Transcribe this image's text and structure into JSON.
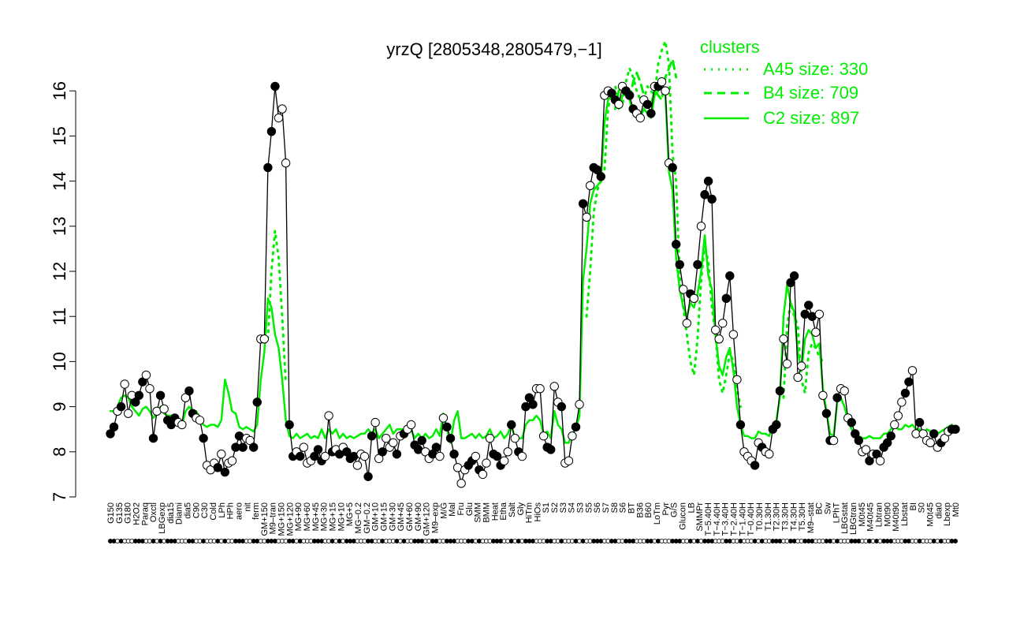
{
  "colors": {
    "accent": "#00ee00",
    "line": "#000000",
    "background": "#ffffff"
  },
  "chart_data": {
    "type": "line",
    "title": "yrzQ [2805348,2805479,−1]",
    "ylim": [
      7,
      16.5
    ],
    "yticks": [
      7,
      8,
      9,
      10,
      11,
      12,
      13,
      14,
      15,
      16
    ],
    "legend": {
      "title": "clusters",
      "position": "top-right",
      "entries": [
        {
          "label": "A45 size: 330",
          "style": "dotted"
        },
        {
          "label": "B4 size: 709",
          "style": "dashed"
        },
        {
          "label": "C2 size: 897",
          "style": "solid"
        }
      ]
    },
    "x_tick_labels": [
      "G150",
      "G135",
      "G180",
      "H2O2",
      "Paraq",
      "Oxctl",
      "LBGexp",
      "dia15",
      "Diami",
      "dia5",
      "C90",
      "C30",
      "Cold",
      "LPh",
      "HPh",
      "aero",
      "nit",
      "ferm",
      "GM+150",
      "M9–tran",
      "MG+150",
      "MG+120",
      "MG+90",
      "MG+60",
      "MG+45",
      "MG+30",
      "MG+15",
      "MG+10",
      "MG+5",
      "MG−0.2",
      "GM−0.2",
      "GM+10",
      "GM+15",
      "GM+30",
      "GM+45",
      "GM+60",
      "GM+90",
      "GM+120",
      "M9–exp",
      "M/G",
      "Mal",
      "Fru",
      "Glu",
      "SMM",
      "BMM",
      "Heat",
      "Etha",
      "Salt",
      "Gly",
      "HiTm",
      "HiOs",
      "S1",
      "S2",
      "S3",
      "S4",
      "S3",
      "S5",
      "S6",
      "S7",
      "S8",
      "S6",
      "BT",
      "B36",
      "B60",
      "LoTm",
      "Pyr",
      "G/S",
      "Glucon",
      "LB",
      "SMMPr",
      "T−5.40H",
      "T−4.40H",
      "T−3.40H",
      "T−2.40H",
      "T−1.40H",
      "T−0.40H",
      "T0.30H",
      "T1.30H",
      "T2.30H",
      "T3.30H",
      "T4.30H",
      "T5.30H",
      "M9–stat",
      "BC",
      "Sw",
      "LPhT",
      "LBGstat",
      "LBGtran",
      "M0t45",
      "M40t45",
      "Lbtran",
      "M0t90",
      "M40t90",
      "Lbstat",
      "BI",
      "S0",
      "M0t45",
      "dia0",
      "Lbexp",
      "Mt0"
    ],
    "series": [
      {
        "type": "observations",
        "values": [
          8.4,
          8.55,
          8.9,
          9.0,
          9.5,
          8.85,
          9.25,
          9.1,
          9.25,
          9.55,
          9.7,
          9.4,
          8.3,
          8.9,
          9.25,
          8.95,
          8.7,
          8.6,
          8.75,
          8.65,
          8.6,
          9.2,
          9.35,
          8.85,
          8.75,
          8.7,
          8.3,
          7.7,
          7.6,
          7.75,
          7.65,
          7.95,
          7.55,
          7.75,
          7.8,
          8.1,
          8.35,
          8.1,
          8.3,
          8.25,
          8.1,
          9.1,
          10.5,
          10.5,
          14.3,
          15.1,
          16.1,
          15.4,
          15.6,
          14.4,
          8.6,
          7.9,
          8.0,
          7.9,
          8.1,
          7.75,
          7.8,
          7.9,
          8.05,
          7.8,
          7.9,
          8.8,
          8.0,
          8.05,
          7.95,
          8.1,
          8.0,
          7.85,
          7.9,
          7.7,
          7.95,
          7.9,
          7.45,
          8.35,
          8.65,
          7.85,
          8.0,
          8.3,
          8.1,
          8.2,
          7.95,
          8.35,
          8.4,
          8.5,
          8.6,
          8.15,
          8.05,
          8.25,
          8.0,
          7.85,
          7.95,
          8.1,
          7.9,
          8.75,
          8.55,
          8.3,
          7.95,
          7.65,
          7.3,
          7.6,
          7.7,
          7.8,
          7.9,
          7.6,
          7.5,
          7.75,
          8.3,
          7.95,
          7.9,
          7.7,
          7.8,
          8.0,
          8.6,
          8.3,
          8.0,
          7.9,
          9.0,
          9.2,
          9.05,
          9.4,
          9.4,
          8.35,
          8.1,
          8.05,
          9.45,
          9.1,
          9.0,
          7.75,
          7.8,
          8.35,
          8.55,
          9.05,
          13.5,
          13.2,
          13.9,
          14.3,
          14.25,
          14.1,
          15.9,
          16.0,
          15.95,
          15.8,
          15.7,
          16.1,
          16.0,
          15.9,
          15.6,
          15.5,
          15.4,
          15.8,
          15.7,
          15.5,
          16.1,
          16.1,
          16.2,
          16.0,
          14.4,
          14.3,
          12.6,
          12.15,
          11.6,
          10.85,
          11.5,
          11.4,
          12.15,
          13.0,
          13.7,
          14.0,
          13.6,
          10.7,
          10.5,
          10.85,
          11.4,
          11.9,
          10.6,
          9.6,
          8.6,
          8.0,
          7.9,
          7.8,
          7.7,
          8.2,
          8.1,
          8.0,
          7.95,
          8.5,
          8.6,
          9.35,
          10.5,
          9.95,
          11.75,
          11.9,
          9.65,
          9.9,
          11.05,
          11.25,
          11.0,
          10.65,
          11.05,
          9.25,
          8.85,
          8.25,
          8.25,
          9.2,
          9.4,
          9.35,
          8.75,
          8.65,
          8.4,
          8.25,
          8.0,
          8.05,
          7.8,
          7.95,
          7.95,
          7.8,
          8.1,
          8.2,
          8.35,
          8.6,
          8.8,
          9.1,
          9.3,
          9.55,
          9.8,
          8.4,
          8.65,
          8.4,
          8.25,
          8.2,
          8.4,
          8.1,
          8.2,
          8.3,
          8.45,
          8.5,
          8.5
        ],
        "filled_pattern": [
          1,
          1,
          0,
          1,
          0,
          0,
          0,
          1,
          1,
          1,
          0,
          0,
          1,
          0,
          1,
          0,
          1,
          1,
          1,
          0,
          0,
          0,
          1,
          1,
          0,
          0,
          1,
          0,
          0,
          0,
          1,
          0,
          1,
          0,
          0,
          1,
          1,
          1,
          0,
          0,
          1,
          1,
          0,
          0,
          1,
          1,
          1,
          0,
          0,
          0
        ]
      },
      {
        "name": "C2 size: 897",
        "style": "solid",
        "values": [
          8.9,
          8.9,
          9.0,
          9.2,
          9.25,
          9.2,
          9.0,
          8.9,
          8.8,
          8.95,
          9.0,
          8.9,
          8.75,
          8.85,
          9.0,
          8.85,
          8.8,
          8.8,
          8.8,
          8.75,
          8.6,
          8.9,
          9.0,
          8.9,
          8.9,
          8.75,
          8.6,
          8.55,
          8.6,
          8.6,
          8.55,
          8.7,
          9.6,
          9.3,
          8.9,
          8.85,
          8.55,
          8.5,
          8.55,
          8.5,
          8.45,
          8.6,
          9.6,
          10.2,
          11.4,
          11.2,
          10.6,
          10.3,
          9.6,
          8.7,
          8.35,
          8.3,
          8.4,
          8.3,
          8.35,
          8.4,
          8.3,
          8.35,
          8.3,
          8.5,
          8.3,
          8.5,
          8.4,
          8.5,
          8.3,
          8.4,
          8.3,
          8.35,
          8.3,
          8.35,
          8.4,
          8.4,
          8.5,
          8.4,
          8.5,
          8.3,
          8.4,
          8.5,
          8.6,
          8.4,
          8.5,
          8.5,
          8.5,
          8.5,
          8.5,
          8.3,
          8.4,
          8.3,
          8.4,
          8.3,
          8.35,
          8.5,
          8.35,
          8.85,
          8.5,
          8.2,
          8.7,
          8.9,
          8.3,
          8.3,
          8.35,
          8.4,
          8.3,
          8.4,
          8.3,
          8.35,
          8.5,
          8.3,
          8.35,
          8.45,
          8.3,
          8.4,
          8.6,
          8.3,
          8.3,
          8.3,
          8.6,
          8.7,
          8.7,
          8.8,
          8.7,
          8.4,
          8.45,
          8.3,
          8.9,
          8.6,
          8.5,
          8.2,
          8.2,
          8.4,
          8.5,
          8.8,
          11.8,
          12.5,
          13.5,
          13.8,
          13.9,
          14.0,
          15.3,
          15.8,
          15.9,
          15.7,
          15.6,
          15.9,
          16.0,
          15.8,
          15.5,
          15.4,
          15.4,
          15.6,
          15.5,
          15.4,
          15.9,
          16.0,
          16.1,
          15.9,
          14.2,
          13.8,
          12.3,
          11.6,
          11.2,
          11.0,
          11.3,
          11.2,
          11.5,
          12.0,
          12.8,
          11.9,
          11.6,
          10.6,
          9.9,
          9.7,
          10.1,
          10.3,
          9.8,
          9.0,
          8.6,
          8.35,
          8.35,
          8.3,
          8.3,
          8.45,
          8.4,
          8.4,
          8.35,
          8.6,
          8.7,
          9.2,
          11.0,
          11.7,
          11.3,
          11.1,
          10.2,
          9.8,
          10.5,
          10.7,
          10.6,
          10.3,
          10.4,
          9.4,
          8.9,
          8.4,
          8.35,
          9.1,
          9.2,
          9.0,
          8.7,
          8.5,
          8.4,
          8.35,
          8.3,
          8.3,
          8.35,
          8.3,
          8.3,
          8.3,
          8.4,
          8.4,
          8.5,
          8.6,
          8.5,
          8.5,
          8.6,
          8.55,
          8.6,
          8.5,
          8.5,
          8.4,
          8.5,
          8.45,
          8.45,
          8.4,
          8.45,
          8.5,
          8.55,
          8.6
        ]
      },
      {
        "name": "B4 size: 709",
        "style": "dashed",
        "values": [
          null,
          null,
          null,
          null,
          null,
          null,
          null,
          null,
          null,
          null,
          null,
          null,
          null,
          null,
          null,
          null,
          null,
          null,
          null,
          null,
          null,
          null,
          null,
          null,
          null,
          null,
          null,
          null,
          null,
          null,
          null,
          null,
          null,
          null,
          null,
          null,
          null,
          null,
          null,
          null,
          null,
          null,
          null,
          null,
          null,
          null,
          null,
          null,
          null,
          null,
          null,
          null,
          null,
          null,
          null,
          null,
          null,
          null,
          null,
          null,
          null,
          null,
          null,
          null,
          null,
          null,
          null,
          null,
          null,
          null,
          null,
          null,
          null,
          null,
          null,
          null,
          null,
          null,
          null,
          null,
          null,
          null,
          null,
          null,
          null,
          null,
          null,
          null,
          null,
          null,
          null,
          null,
          null,
          null,
          null,
          null,
          null,
          null,
          null,
          null,
          null,
          null,
          null,
          null,
          null,
          null,
          null,
          null,
          null,
          null,
          null,
          null,
          null,
          null,
          null,
          null,
          null,
          null,
          null,
          null,
          null,
          null,
          null,
          null,
          null,
          null,
          null,
          null,
          null,
          null,
          null,
          null,
          null,
          null,
          null,
          null,
          null,
          null,
          null,
          null,
          null,
          15.6,
          16.0,
          16.1,
          15.9,
          15.8,
          16.2,
          16.4,
          16.2,
          15.9,
          15.7,
          15.7,
          16.0,
          15.9,
          15.8,
          16.3,
          16.5,
          16.7,
          16.3,
          null,
          null,
          null,
          null,
          null,
          null,
          null,
          null,
          null,
          null,
          null,
          null,
          null,
          null,
          null,
          null,
          null,
          null,
          null,
          null,
          null,
          null,
          null,
          null,
          null,
          null,
          null,
          null,
          null,
          null,
          null,
          null,
          null,
          null,
          null,
          null,
          null,
          null,
          null,
          null,
          null,
          null,
          null,
          null,
          null,
          null,
          null,
          null,
          null,
          null,
          null,
          null,
          null,
          null,
          null,
          null,
          null,
          null,
          null,
          null,
          null,
          null,
          null,
          null,
          null,
          null,
          null,
          null,
          null,
          null,
          null,
          null,
          null,
          null,
          null,
          null,
          null,
          null,
          null,
          null,
          null,
          null,
          null,
          null,
          null
        ]
      },
      {
        "name": "A45 size: 330",
        "style": "dotted",
        "values": [
          null,
          null,
          null,
          null,
          null,
          null,
          null,
          null,
          null,
          null,
          null,
          null,
          null,
          null,
          null,
          null,
          null,
          null,
          null,
          null,
          null,
          null,
          null,
          null,
          null,
          null,
          null,
          null,
          null,
          null,
          null,
          null,
          null,
          null,
          null,
          null,
          null,
          null,
          null,
          null,
          null,
          null,
          null,
          null,
          10.5,
          12.0,
          12.9,
          12.3,
          11.0,
          9.5,
          null,
          null,
          null,
          null,
          null,
          null,
          null,
          null,
          null,
          null,
          null,
          null,
          null,
          null,
          null,
          null,
          null,
          null,
          null,
          null,
          null,
          null,
          null,
          null,
          null,
          null,
          null,
          null,
          null,
          null,
          null,
          null,
          null,
          null,
          null,
          null,
          null,
          null,
          null,
          null,
          null,
          null,
          null,
          null,
          null,
          null,
          null,
          null,
          null,
          null,
          null,
          null,
          null,
          null,
          null,
          null,
          null,
          null,
          null,
          null,
          null,
          null,
          null,
          null,
          null,
          null,
          null,
          null,
          null,
          null,
          null,
          null,
          null,
          null,
          null,
          null,
          null,
          null,
          null,
          null,
          null,
          null,
          null,
          11.0,
          12.0,
          13.3,
          13.8,
          14.0,
          14.2,
          15.6,
          16.0,
          16.1,
          15.8,
          15.7,
          16.2,
          16.5,
          16.3,
          16.0,
          15.8,
          15.8,
          16.1,
          16.0,
          15.9,
          16.6,
          16.9,
          17.1,
          16.6,
          14.6,
          14.0,
          11.9,
          11.2,
          10.6,
          10.0,
          9.7,
          10.5,
          11.8,
          12.6,
          12.2,
          11.2,
          10.6,
          9.6,
          9.3,
          9.7,
          10.2,
          10.0,
          9.4,
          9.0,
          null,
          null,
          null,
          null,
          null,
          null,
          null,
          null,
          null,
          null,
          null,
          9.2,
          10.8,
          11.3,
          11.0,
          10.8,
          9.6,
          9.3,
          10.2,
          10.4,
          10.3,
          10.1,
          10.0,
          null,
          null,
          null,
          null,
          null,
          null,
          null,
          null,
          null,
          null,
          null,
          null,
          null,
          null,
          null,
          null,
          null,
          null,
          null,
          null,
          null,
          null,
          null,
          null,
          null,
          null,
          null,
          null,
          null,
          null,
          null,
          null,
          null,
          null,
          null,
          null
        ]
      }
    ]
  }
}
